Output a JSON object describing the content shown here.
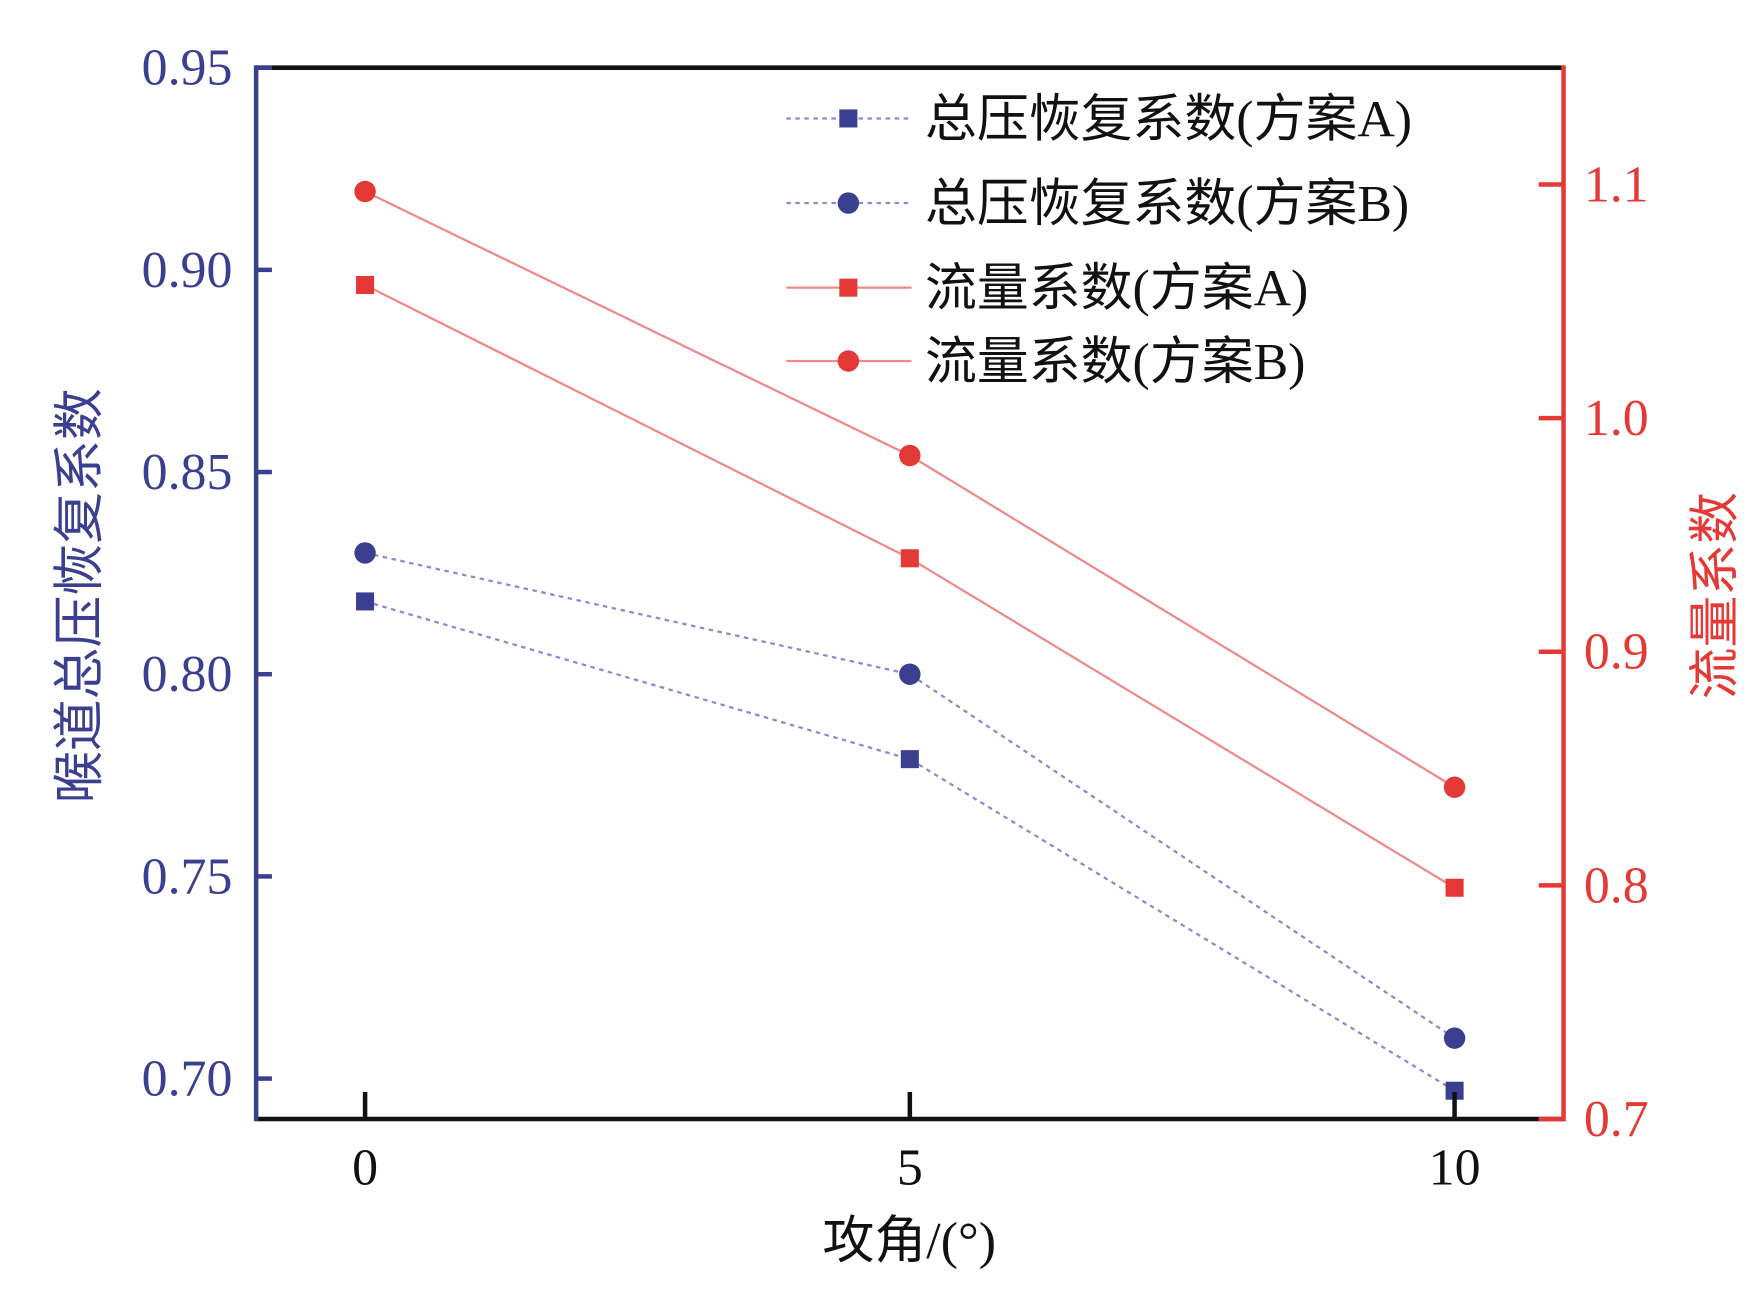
{
  "chart_data": {
    "type": "line",
    "x": [
      0,
      5,
      10
    ],
    "xlabel": "攻角/(°)",
    "xlim": [
      -1,
      11
    ],
    "xticks": [
      "0",
      "5",
      "10"
    ],
    "ylabel_left": "喉道总压恢复系数",
    "ylim_left": [
      0.69,
      0.95
    ],
    "yticks_left": [
      "0.70",
      "0.75",
      "0.80",
      "0.85",
      "0.90",
      "0.95"
    ],
    "ylabel_right": "流量系数",
    "ylim_right": [
      0.7,
      1.15
    ],
    "yticks_right": [
      "0.7",
      "0.8",
      "0.9",
      "1.0",
      "1.1"
    ],
    "grid": false,
    "legend_position": "top-right",
    "colors": {
      "left_axis": "#3a3f8f",
      "right_axis": "#e53935",
      "blue_line": "#8a8ccc",
      "red_line": "#f08a8a",
      "red_marker": "#e53935",
      "blue_marker": "#3a3f8f"
    },
    "series": [
      {
        "name": "总压恢复系数(方案A)",
        "axis": "left",
        "marker": "square",
        "style": "dotted",
        "values": [
          0.818,
          0.779,
          0.697
        ]
      },
      {
        "name": "总压恢复系数(方案B)",
        "axis": "left",
        "marker": "circle",
        "style": "dotted",
        "values": [
          0.83,
          0.8,
          0.71
        ]
      },
      {
        "name": "流量系数(方案A)",
        "axis": "right",
        "marker": "square",
        "style": "solid",
        "values": [
          1.057,
          0.94,
          0.799
        ]
      },
      {
        "name": "流量系数(方案B)",
        "axis": "right",
        "marker": "circle",
        "style": "solid",
        "values": [
          1.097,
          0.984,
          0.842
        ]
      }
    ]
  }
}
